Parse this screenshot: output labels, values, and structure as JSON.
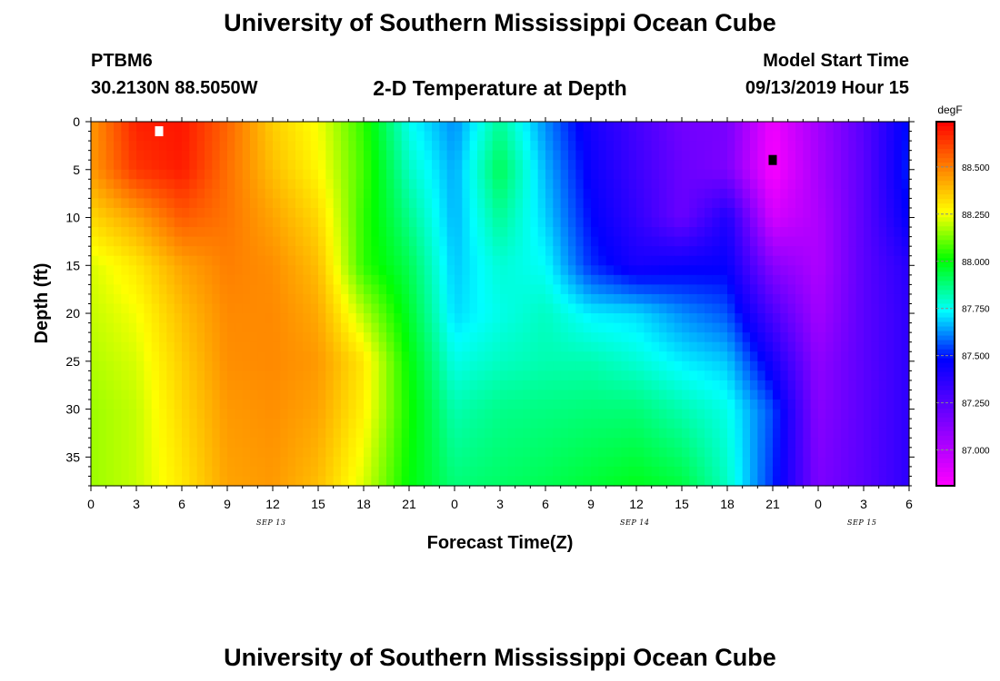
{
  "header": {
    "title": "University of Southern Mississippi Ocean Cube",
    "footer_title": "University of Southern Mississippi Ocean Cube",
    "station": "PTBM6",
    "location": "30.2130N 88.5050W",
    "subtitle": "2-D Temperature at Depth",
    "model_label": "Model Start Time",
    "model_time": "09/13/2019 Hour 15"
  },
  "chart_data": {
    "type": "heatmap",
    "title": "2-D Temperature at Depth",
    "xlabel": "Forecast Time(Z)",
    "ylabel": "Depth (ft)",
    "units": "degF",
    "x_ticks": [
      "0",
      "3",
      "6",
      "9",
      "12",
      "15",
      "18",
      "21",
      "0",
      "3",
      "6",
      "9",
      "12",
      "15",
      "18",
      "21",
      "0",
      "3",
      "6"
    ],
    "date_labels": [
      {
        "label": "SEP 13",
        "hours_from_start": 12
      },
      {
        "label": "SEP 14",
        "hours_from_start": 36
      },
      {
        "label": "SEP 15",
        "hours_from_start": 51
      }
    ],
    "x_range_hours": [
      0,
      54
    ],
    "y_ticks": [
      0,
      5,
      10,
      15,
      20,
      25,
      30,
      35
    ],
    "y_range_ft": [
      0,
      38
    ],
    "colorbar": {
      "ticks": [
        "88.500",
        "88.250",
        "88.000",
        "87.750",
        "87.500",
        "87.250",
        "87.000"
      ],
      "min": 86.81,
      "max": 88.74
    },
    "markers": [
      {
        "type": "max",
        "hour": 4.5,
        "depth_ft": 1,
        "color": "#ffffff"
      },
      {
        "type": "min",
        "hour": 45,
        "depth_ft": 4,
        "color": "#000000"
      }
    ],
    "time_hours": [
      0,
      3,
      6,
      9,
      12,
      15,
      18,
      21,
      24,
      27,
      30,
      33,
      36,
      39,
      42,
      45,
      48,
      51,
      54
    ],
    "depth_ft": [
      0,
      5,
      10,
      15,
      20,
      25,
      30,
      38
    ],
    "temperature_degF": [
      [
        88.45,
        88.68,
        88.7,
        88.55,
        88.35,
        88.25,
        88.05,
        87.75,
        87.62,
        87.85,
        87.62,
        87.42,
        87.3,
        87.18,
        87.16,
        86.85,
        87.05,
        87.25,
        87.5
      ],
      [
        88.45,
        88.64,
        88.69,
        88.53,
        88.38,
        88.27,
        88.07,
        87.8,
        87.65,
        87.92,
        87.66,
        87.45,
        87.32,
        87.2,
        87.15,
        86.82,
        87.04,
        87.24,
        87.52
      ],
      [
        88.33,
        88.43,
        88.57,
        88.52,
        88.43,
        88.33,
        88.05,
        87.86,
        87.66,
        87.85,
        87.69,
        87.48,
        87.35,
        87.2,
        87.4,
        86.92,
        87.02,
        87.24,
        87.48
      ],
      [
        88.22,
        88.3,
        88.43,
        88.5,
        88.47,
        88.38,
        88.05,
        87.92,
        87.68,
        87.78,
        87.74,
        87.52,
        87.42,
        87.45,
        87.46,
        87.12,
        87.02,
        87.24,
        87.38
      ],
      [
        88.2,
        88.25,
        88.38,
        88.48,
        88.48,
        88.42,
        88.18,
        87.96,
        87.7,
        87.76,
        87.8,
        87.72,
        87.7,
        87.62,
        87.56,
        87.28,
        87.05,
        87.24,
        87.36
      ],
      [
        88.18,
        88.22,
        88.35,
        88.47,
        88.48,
        88.45,
        88.3,
        88.0,
        87.76,
        87.8,
        87.82,
        87.82,
        87.78,
        87.72,
        87.68,
        87.42,
        87.1,
        87.24,
        87.36
      ],
      [
        88.16,
        88.2,
        88.33,
        88.45,
        88.47,
        88.43,
        88.28,
        88.02,
        87.82,
        87.86,
        87.87,
        87.88,
        87.88,
        87.82,
        87.76,
        87.55,
        87.12,
        87.24,
        87.36
      ],
      [
        88.16,
        88.2,
        88.3,
        88.43,
        88.45,
        88.38,
        88.22,
        88.0,
        87.88,
        87.9,
        87.92,
        87.95,
        87.98,
        87.94,
        87.8,
        87.52,
        87.15,
        87.24,
        87.36
      ]
    ]
  }
}
